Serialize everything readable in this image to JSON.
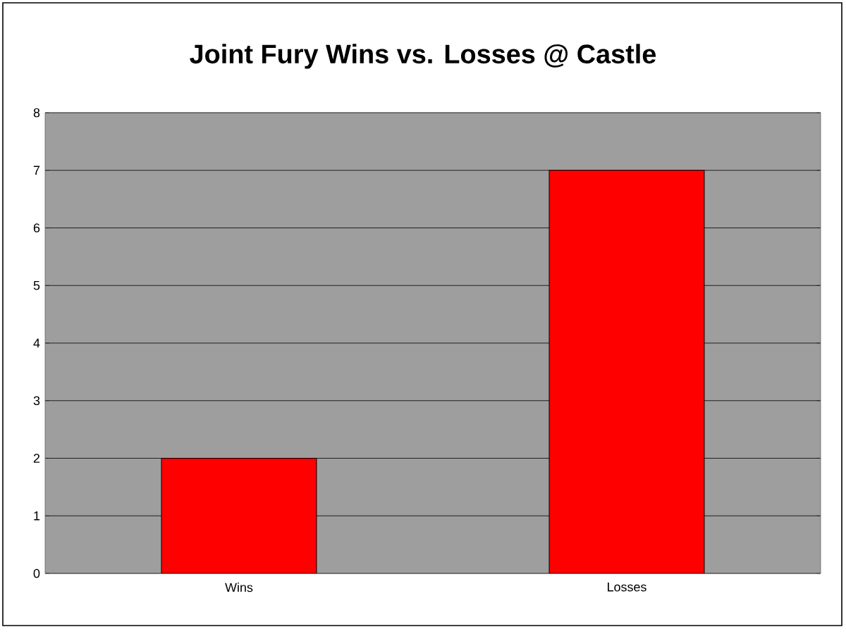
{
  "chart_data": {
    "type": "bar",
    "title": "Joint Fury Wins vs. Losses @ Castle",
    "categories": [
      "Wins",
      "Losses"
    ],
    "values": [
      2,
      7
    ],
    "color": "#ff0000",
    "ylim": [
      0,
      8
    ],
    "yticks": [
      0,
      1,
      2,
      3,
      4,
      5,
      6,
      7,
      8
    ],
    "grid": "y"
  }
}
